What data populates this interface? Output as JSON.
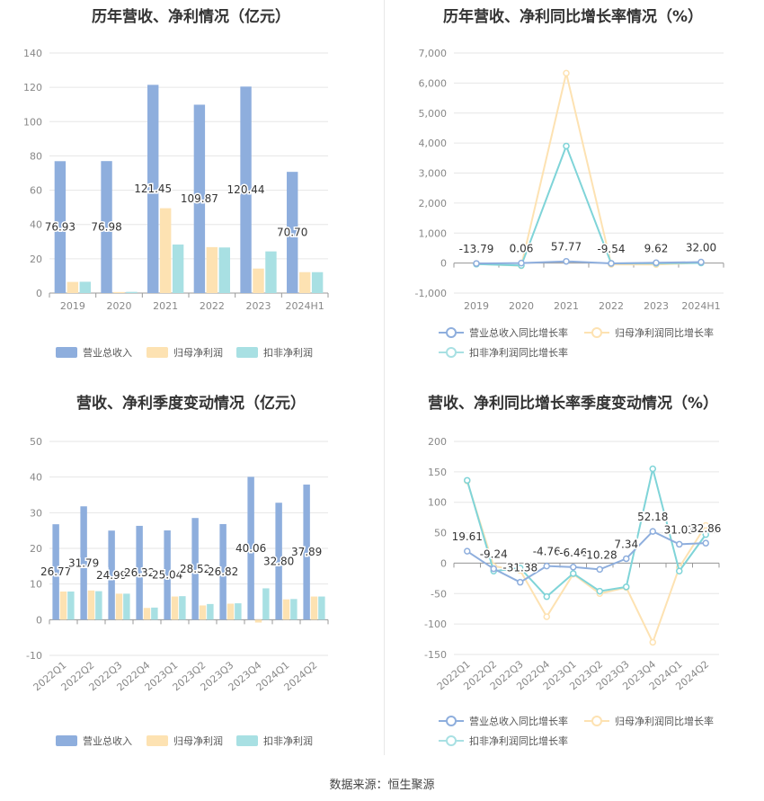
{
  "footer": "数据来源：恒生聚源",
  "colors": {
    "revenue": "#8eaedd",
    "parent_profit": "#fde2b2",
    "deducted_profit": "#a8e0e3",
    "rev_line": "#8eaedd",
    "parent_line": "#fde2b2",
    "deducted_line": "#7fd4d8"
  },
  "chart_data": [
    {
      "type": "bar",
      "title": "历年营收、净利情况（亿元）",
      "categories": [
        "2019",
        "2020",
        "2021",
        "2022",
        "2023",
        "2024H1"
      ],
      "ylim": [
        0,
        140
      ],
      "yticks": [
        "0",
        "20",
        "40",
        "60",
        "80",
        "100",
        "120",
        "140"
      ],
      "series": [
        {
          "name": "营业总收入",
          "values": [
            76.93,
            76.98,
            121.45,
            109.87,
            120.44,
            70.7
          ],
          "labels": [
            "76.93",
            "76.98",
            "121.45",
            "109.87",
            "120.44",
            "70.70"
          ]
        },
        {
          "name": "归母净利润",
          "values": [
            6.5,
            0.6,
            49.5,
            26.8,
            14.3,
            12.2
          ]
        },
        {
          "name": "扣非净利润",
          "values": [
            6.6,
            0.7,
            28.3,
            26.6,
            24.3,
            12.2
          ]
        }
      ]
    },
    {
      "type": "line",
      "title": "历年营收、净利同比增长率情况（%）",
      "categories": [
        "2019",
        "2020",
        "2021",
        "2022",
        "2023",
        "2024H1"
      ],
      "ylim": [
        -1000,
        7000
      ],
      "yticks": [
        "-1,000",
        "0",
        "1,000",
        "2,000",
        "3,000",
        "4,000",
        "5,000",
        "6,000",
        "7,000"
      ],
      "series": [
        {
          "name": "营业总收入同比增长率",
          "values": [
            -13.79,
            0.06,
            57.77,
            -9.54,
            9.62,
            32.0
          ],
          "labels": [
            "-13.79",
            "0.06",
            "57.77",
            "-9.54",
            "9.62",
            "32.00"
          ]
        },
        {
          "name": "归母净利润同比增长率",
          "values": [
            -30,
            -90,
            6330,
            -45,
            -47,
            10
          ]
        },
        {
          "name": "扣非净利润同比增长率",
          "values": [
            -35,
            -80,
            3900,
            -10,
            -8,
            5
          ]
        }
      ]
    },
    {
      "type": "bar",
      "title": "营收、净利季度变动情况（亿元）",
      "categories": [
        "2022Q1",
        "2022Q2",
        "2022Q3",
        "2022Q4",
        "2023Q1",
        "2023Q2",
        "2023Q3",
        "2023Q4",
        "2024Q1",
        "2024Q2"
      ],
      "ylim": [
        -10,
        50
      ],
      "yticks": [
        "-10",
        "0",
        "10",
        "20",
        "30",
        "40",
        "50"
      ],
      "series": [
        {
          "name": "营业总收入",
          "values": [
            26.77,
            31.79,
            24.99,
            26.32,
            25.04,
            28.52,
            26.82,
            40.06,
            32.8,
            37.89
          ],
          "labels": [
            "26.77",
            "31.79",
            "24.99",
            "26.32",
            "25.04",
            "28.52",
            "26.82",
            "40.06",
            "32.80",
            "37.89"
          ]
        },
        {
          "name": "归母净利润",
          "values": [
            7.9,
            8.2,
            7.3,
            3.3,
            6.5,
            4.0,
            4.5,
            -0.8,
            5.7,
            6.5
          ]
        },
        {
          "name": "扣非净利润",
          "values": [
            7.9,
            8.0,
            7.3,
            3.4,
            6.6,
            4.4,
            4.6,
            8.8,
            5.8,
            6.5
          ]
        }
      ]
    },
    {
      "type": "line",
      "title": "营收、净利同比增长率季度变动情况（%）",
      "categories": [
        "2022Q1",
        "2022Q2",
        "2022Q3",
        "2022Q4",
        "2023Q1",
        "2023Q2",
        "2023Q3",
        "2023Q4",
        "2024Q1",
        "2024Q2"
      ],
      "ylim": [
        -150,
        200
      ],
      "yticks": [
        "-150",
        "-100",
        "-50",
        "0",
        "50",
        "100",
        "150",
        "200"
      ],
      "series": [
        {
          "name": "营业总收入同比增长率",
          "values": [
            19.61,
            -9.24,
            -31.38,
            -4.76,
            -6.46,
            -10.28,
            7.34,
            52.18,
            31.03,
            32.86
          ],
          "labels": [
            "19.61",
            "-9.24",
            "-31.38",
            "-4.76",
            "-6.46",
            "-10.28",
            "7.34",
            "52.18",
            "31.03",
            "32.86"
          ]
        },
        {
          "name": "归母净利润同比增长率",
          "values": [
            135,
            -5,
            -12,
            -88,
            -18,
            -50,
            -40,
            -130,
            -7,
            62
          ]
        },
        {
          "name": "扣非净利润同比增长率",
          "values": [
            136,
            -13,
            -8,
            -55,
            -17,
            -46,
            -39,
            155,
            -13,
            47
          ]
        }
      ]
    }
  ]
}
